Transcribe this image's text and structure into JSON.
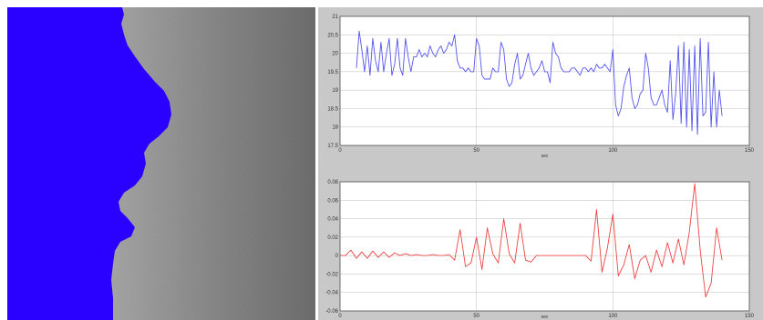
{
  "colors": {
    "segmented_region": "#2a00ff",
    "figure_background": "#c8c8c8",
    "axes_background": "#ffffff",
    "grid": "#bdbdbd",
    "top_series": "#5555ee",
    "bottom_series": "#ee4444"
  },
  "chart_data": [
    {
      "type": "line",
      "title": "",
      "xlabel": "sec",
      "ylabel": "",
      "xlim": [
        0,
        150
      ],
      "ylim": [
        17.5,
        21
      ],
      "xticks": [
        "0",
        "50",
        "100",
        "150"
      ],
      "yticks": [
        "17.5",
        "18",
        "18.5",
        "19",
        "19.5",
        "20",
        "20.5",
        "21"
      ],
      "grid": true,
      "series": [
        {
          "color": "#5555ee",
          "x": [
            6,
            7,
            8,
            9,
            10,
            11,
            12,
            13,
            14,
            15,
            16,
            17,
            18,
            19,
            20,
            21,
            22,
            23,
            24,
            25,
            26,
            27,
            28,
            29,
            30,
            31,
            32,
            33,
            34,
            35,
            36,
            37,
            38,
            39,
            40,
            41,
            42,
            43,
            44,
            45,
            46,
            47,
            48,
            49,
            50,
            51,
            52,
            53,
            54,
            55,
            56,
            57,
            58,
            59,
            60,
            61,
            62,
            63,
            64,
            65,
            66,
            67,
            68,
            69,
            70,
            71,
            72,
            73,
            74,
            75,
            76,
            77,
            78,
            79,
            80,
            81,
            82,
            83,
            84,
            85,
            86,
            87,
            88,
            89,
            90,
            91,
            92,
            93,
            94,
            95,
            96,
            97,
            98,
            99,
            100,
            101,
            102,
            103,
            104,
            105,
            106,
            107,
            108,
            109,
            110,
            111,
            112,
            113,
            114,
            115,
            116,
            117,
            118,
            119,
            120,
            121,
            122,
            123,
            124,
            125,
            126,
            127,
            128,
            129,
            130,
            131,
            132,
            133,
            134,
            135,
            136,
            137,
            138,
            139,
            140
          ],
          "y": [
            19.6,
            20.6,
            20.1,
            19.5,
            20.2,
            19.4,
            20.4,
            19.8,
            19.5,
            20.3,
            19.5,
            20.0,
            20.4,
            19.4,
            19.7,
            20.4,
            19.6,
            19.4,
            20.4,
            19.9,
            19.5,
            19.9,
            19.9,
            20.1,
            19.9,
            20.0,
            19.9,
            20.2,
            20.0,
            19.9,
            20.1,
            20.2,
            20.0,
            20.1,
            20.3,
            20.2,
            20.5,
            19.8,
            19.6,
            19.6,
            19.5,
            19.6,
            19.5,
            19.5,
            20.4,
            20.2,
            19.4,
            19.3,
            19.3,
            19.3,
            19.6,
            19.5,
            19.5,
            20.3,
            20.1,
            19.3,
            19.1,
            19.2,
            19.7,
            20.0,
            19.3,
            19.4,
            19.7,
            20.0,
            19.6,
            19.4,
            19.5,
            19.6,
            19.8,
            19.5,
            19.5,
            19.2,
            20.3,
            20.0,
            19.9,
            19.6,
            19.5,
            19.5,
            19.5,
            19.6,
            19.6,
            19.5,
            19.4,
            19.6,
            19.6,
            19.5,
            19.6,
            19.5,
            19.7,
            19.6,
            19.6,
            19.7,
            19.6,
            19.5,
            20.1,
            18.6,
            18.3,
            18.5,
            19.1,
            19.4,
            19.6,
            18.8,
            18.5,
            18.6,
            18.9,
            19.0,
            20.0,
            19.6,
            18.8,
            18.6,
            18.6,
            18.8,
            19.0,
            18.6,
            18.4,
            19.8,
            18.2,
            18.9,
            20.2,
            18.1,
            20.3,
            18.0,
            20.1,
            17.9,
            20.2,
            17.8,
            20.4,
            18.3,
            18.4,
            20.3,
            18.0,
            19.5,
            18.0,
            19.0,
            18.3
          ],
          "note_line": false
        }
      ]
    },
    {
      "type": "line",
      "title": "",
      "xlabel": "sec",
      "ylabel": "",
      "xlim": [
        0,
        150
      ],
      "ylim": [
        -0.06,
        0.08
      ],
      "xticks": [
        "0",
        "50",
        "100",
        "150"
      ],
      "yticks": [
        "-0.06",
        "-0.04",
        "-0.02",
        "0",
        "0.02",
        "0.04",
        "0.06",
        "0.08"
      ],
      "grid": true,
      "series": [
        {
          "color": "#ee4444",
          "x": [
            0,
            2,
            4,
            6,
            8,
            10,
            12,
            14,
            16,
            18,
            20,
            22,
            24,
            26,
            28,
            30,
            32,
            34,
            36,
            38,
            40,
            42,
            44,
            46,
            48,
            50,
            52,
            54,
            56,
            58,
            60,
            62,
            64,
            66,
            68,
            70,
            72,
            74,
            76,
            78,
            80,
            82,
            84,
            86,
            88,
            90,
            92,
            94,
            96,
            98,
            100,
            102,
            104,
            106,
            108,
            110,
            112,
            114,
            116,
            118,
            120,
            122,
            124,
            126,
            128,
            130,
            132,
            134,
            136,
            138,
            140
          ],
          "y": [
            0.0,
            0.0,
            0.006,
            -0.003,
            0.004,
            -0.003,
            0.005,
            -0.002,
            0.004,
            -0.002,
            0.003,
            0.0,
            0.002,
            0.0,
            0.001,
            0.0,
            0.0,
            0.001,
            0.0,
            0.0,
            0.001,
            -0.005,
            0.028,
            -0.012,
            -0.008,
            0.02,
            -0.015,
            0.03,
            0.002,
            -0.008,
            0.04,
            0.002,
            -0.008,
            0.035,
            -0.005,
            -0.007,
            0.0,
            0.0,
            0.0,
            0.0,
            0.0,
            0.0,
            0.0,
            0.0,
            0.0,
            0.0,
            -0.006,
            0.05,
            -0.018,
            0.008,
            0.045,
            -0.022,
            -0.01,
            0.012,
            -0.025,
            -0.005,
            0.0,
            -0.018,
            0.006,
            -0.012,
            0.014,
            -0.008,
            0.018,
            -0.01,
            0.025,
            0.078,
            0.006,
            -0.045,
            -0.03,
            0.03,
            -0.005
          ]
        }
      ]
    }
  ]
}
